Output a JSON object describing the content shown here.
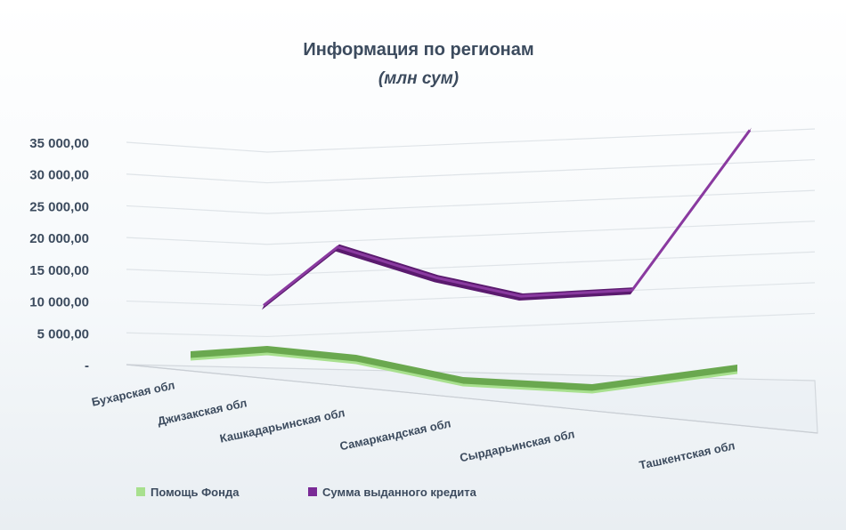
{
  "chart_data": {
    "type": "line",
    "title": "Информация по регионам",
    "subtitle": "(млн сум)",
    "categories": [
      "Бухарская обл",
      "Джизакская обл",
      "Кашкадарьинская обл",
      "Самаркандская обл",
      "Сырдарьинская обл",
      "Ташкентская обл"
    ],
    "y_ticks": [
      "-",
      "5 000,00",
      "10 000,00",
      "15 000,00",
      "20 000,00",
      "25 000,00",
      "30 000,00",
      "35 000,00"
    ],
    "ylim": [
      0,
      35000
    ],
    "grid": true,
    "three_d": true,
    "legend_position": "bottom",
    "series": [
      {
        "name": "Помощь Фонда",
        "color": "#6aa84f",
        "top_color": "#a8e08e",
        "values": [
          700,
          1200,
          900,
          600,
          500,
          1100
        ]
      },
      {
        "name": "Сумма выданного кредита",
        "color": "#5a1a6e",
        "top_color": "#8a3aa0",
        "values": [
          5000,
          14500,
          9500,
          6500,
          7500,
          33500
        ]
      }
    ]
  }
}
